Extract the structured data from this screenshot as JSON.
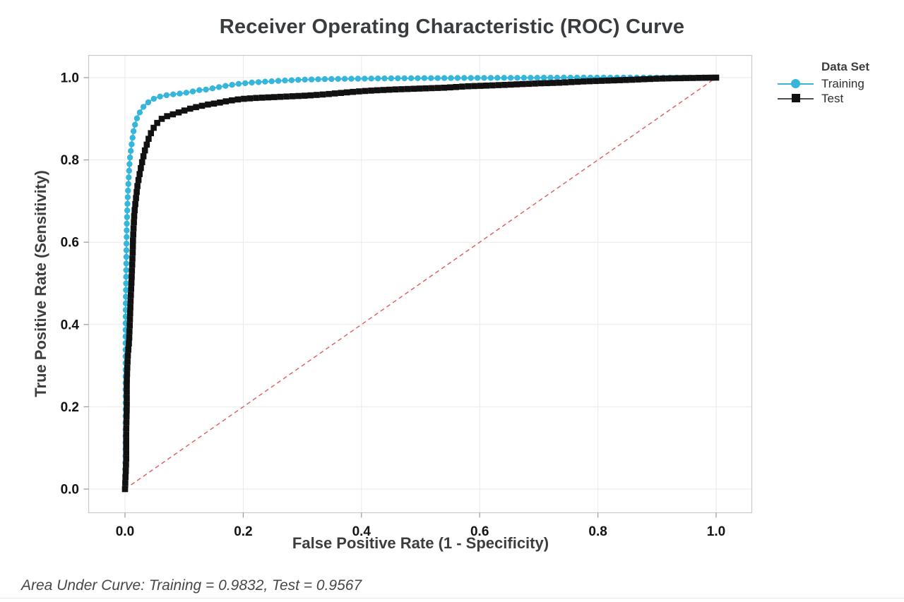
{
  "figure": {
    "title": "Receiver Operating Characteristic (ROC) Curve",
    "footer": "Area Under Curve: Training = 0.9832, Test = 0.9567"
  },
  "axes": {
    "x": {
      "label": "False Positive Rate (1 - Specificity)",
      "ticks": [
        "0.0",
        "0.2",
        "0.4",
        "0.6",
        "0.8",
        "1.0"
      ],
      "tick_values": [
        0,
        0.2,
        0.4,
        0.6,
        0.8,
        1.0
      ]
    },
    "y": {
      "label": "True Positive Rate (Sensitivity)",
      "ticks": [
        "0.0",
        "0.2",
        "0.4",
        "0.6",
        "0.8",
        "1.0"
      ],
      "tick_values": [
        0,
        0.2,
        0.4,
        0.6,
        0.8,
        1.0
      ]
    }
  },
  "legend": {
    "title": "Data Set",
    "items": [
      {
        "label": "Training",
        "marker": "circle",
        "color": "#35b6da",
        "line_color": "#35b6da"
      },
      {
        "label": "Test",
        "marker": "square",
        "color": "#111111",
        "line_color": "#4d4d4d"
      }
    ]
  },
  "colors": {
    "training": "#35b6da",
    "test": "#111111",
    "reference_line": "#e05a5a",
    "gridline": "#e9e9e9",
    "frame": "#c9c9c9",
    "tick": "#9a9a9a",
    "tick_label": "#141414",
    "title_text": "#3a3d3f"
  },
  "chart_data": {
    "type": "line",
    "title": "Receiver Operating Characteristic (ROC) Curve",
    "xlabel": "False Positive Rate (1 - Specificity)",
    "ylabel": "True Positive Rate (Sensitivity)",
    "xlim": [
      0,
      1
    ],
    "ylim": [
      0,
      1
    ],
    "grid": true,
    "legend_position": "right",
    "legend_title": "Data Set",
    "reference_line": {
      "from": [
        0,
        0
      ],
      "to": [
        1,
        1
      ],
      "style": "dashed",
      "color": "#e05a5a"
    },
    "annotation": "Area Under Curve: Training = 0.9832, Test = 0.9567",
    "series": [
      {
        "name": "Training",
        "auc": 0.9832,
        "marker": "circle",
        "color": "#35b6da",
        "points": [
          [
            0,
            0
          ],
          [
            0.001,
            0.1
          ],
          [
            0.001,
            0.25
          ],
          [
            0.001,
            0.4
          ],
          [
            0.0015,
            0.47
          ],
          [
            0.002,
            0.53
          ],
          [
            0.0025,
            0.59
          ],
          [
            0.003,
            0.64
          ],
          [
            0.004,
            0.685
          ],
          [
            0.005,
            0.72
          ],
          [
            0.006,
            0.75
          ],
          [
            0.007,
            0.775
          ],
          [
            0.008,
            0.8
          ],
          [
            0.01,
            0.825
          ],
          [
            0.012,
            0.847
          ],
          [
            0.014,
            0.866
          ],
          [
            0.016,
            0.881
          ],
          [
            0.019,
            0.896
          ],
          [
            0.022,
            0.908
          ],
          [
            0.026,
            0.918
          ],
          [
            0.03,
            0.927
          ],
          [
            0.035,
            0.935
          ],
          [
            0.041,
            0.942
          ],
          [
            0.048,
            0.948
          ],
          [
            0.056,
            0.953
          ],
          [
            0.065,
            0.956
          ],
          [
            0.076,
            0.9585
          ],
          [
            0.088,
            0.9605
          ],
          [
            0.1,
            0.9625
          ],
          [
            0.112,
            0.9655
          ],
          [
            0.125,
            0.9695
          ],
          [
            0.14,
            0.9715
          ],
          [
            0.155,
            0.976
          ],
          [
            0.172,
            0.9805
          ],
          [
            0.19,
            0.9845
          ],
          [
            0.21,
            0.9875
          ],
          [
            0.235,
            0.99
          ],
          [
            0.265,
            0.9925
          ],
          [
            0.3,
            0.995
          ],
          [
            0.34,
            0.9965
          ],
          [
            0.4,
            0.9975
          ],
          [
            0.47,
            0.9985
          ],
          [
            0.55,
            0.999
          ],
          [
            0.65,
            0.9995
          ],
          [
            0.76,
            1
          ],
          [
            0.89,
            1
          ],
          [
            1,
            1
          ]
        ]
      },
      {
        "name": "Test",
        "auc": 0.9567,
        "marker": "square",
        "color": "#111111",
        "points": [
          [
            0,
            0
          ],
          [
            0.002,
            0.07
          ],
          [
            0.002,
            0.14
          ],
          [
            0.003,
            0.2
          ],
          [
            0.003,
            0.26
          ],
          [
            0.004,
            0.3
          ],
          [
            0.005,
            0.33
          ],
          [
            0.007,
            0.36
          ],
          [
            0.008,
            0.4
          ],
          [
            0.009,
            0.44
          ],
          [
            0.01,
            0.475
          ],
          [
            0.011,
            0.505
          ],
          [
            0.012,
            0.54
          ],
          [
            0.013,
            0.575
          ],
          [
            0.0135,
            0.605
          ],
          [
            0.0145,
            0.635
          ],
          [
            0.0155,
            0.662
          ],
          [
            0.017,
            0.688
          ],
          [
            0.019,
            0.712
          ],
          [
            0.021,
            0.737
          ],
          [
            0.024,
            0.76
          ],
          [
            0.027,
            0.782
          ],
          [
            0.03,
            0.802
          ],
          [
            0.033,
            0.82
          ],
          [
            0.037,
            0.838
          ],
          [
            0.041,
            0.856
          ],
          [
            0.046,
            0.872
          ],
          [
            0.051,
            0.884
          ],
          [
            0.057,
            0.894
          ],
          [
            0.064,
            0.902
          ],
          [
            0.073,
            0.9075
          ],
          [
            0.084,
            0.912
          ],
          [
            0.096,
            0.918
          ],
          [
            0.11,
            0.9245
          ],
          [
            0.125,
            0.93
          ],
          [
            0.14,
            0.9345
          ],
          [
            0.157,
            0.9385
          ],
          [
            0.175,
            0.9435
          ],
          [
            0.195,
            0.948
          ],
          [
            0.22,
            0.9505
          ],
          [
            0.25,
            0.9525
          ],
          [
            0.28,
            0.9545
          ],
          [
            0.31,
            0.9565
          ],
          [
            0.34,
            0.9595
          ],
          [
            0.37,
            0.9635
          ],
          [
            0.4,
            0.967
          ],
          [
            0.43,
            0.9695
          ],
          [
            0.46,
            0.9715
          ],
          [
            0.5,
            0.9735
          ],
          [
            0.54,
            0.9755
          ],
          [
            0.58,
            0.979
          ],
          [
            0.62,
            0.981
          ],
          [
            0.66,
            0.9835
          ],
          [
            0.7,
            0.986
          ],
          [
            0.74,
            0.988
          ],
          [
            0.78,
            0.991
          ],
          [
            0.82,
            0.993
          ],
          [
            0.86,
            0.995
          ],
          [
            0.9,
            0.9975
          ],
          [
            0.95,
            0.999
          ],
          [
            1,
            1
          ]
        ]
      }
    ]
  }
}
